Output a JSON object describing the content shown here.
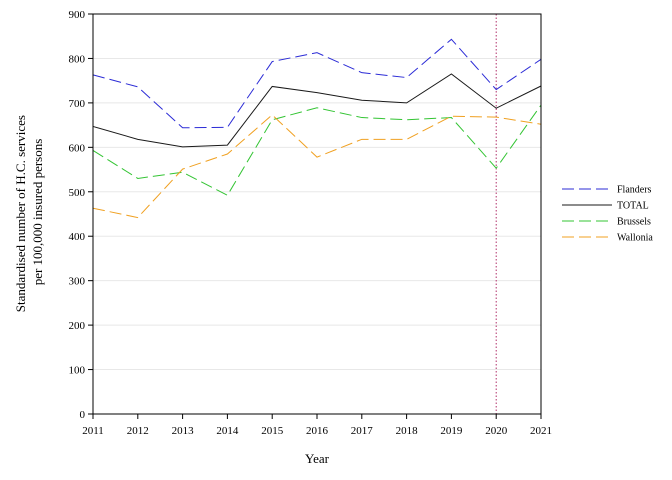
{
  "chart_data": {
    "type": "line",
    "xlabel": "Year",
    "ylabel_lines": [
      "Standardised number of H.C. services",
      "per 100,000 insured persons"
    ],
    "x": [
      "2011",
      "2012",
      "2013",
      "2014",
      "2015",
      "2016",
      "2017",
      "2018",
      "2019",
      "2020",
      "2021"
    ],
    "xlim": [
      2011,
      2021
    ],
    "ylim": [
      0,
      900
    ],
    "yticks": [
      "0",
      "100",
      "200",
      "300",
      "400",
      "500",
      "600",
      "700",
      "800",
      "900"
    ],
    "grid": "horizontal",
    "legend_placement": "right",
    "reference_line": {
      "x": 2020,
      "color": "#b0306a",
      "style": "dotted"
    },
    "series": [
      {
        "name": "Flanders",
        "color": "#2b2bd6",
        "dash": "dashed",
        "values": [
          763,
          736,
          644,
          645,
          793,
          813,
          768,
          757,
          843,
          730,
          798
        ]
      },
      {
        "name": "TOTAL",
        "color": "#1a1a1a",
        "dash": "solid",
        "values": [
          647,
          618,
          601,
          605,
          737,
          723,
          706,
          700,
          765,
          688,
          738
        ]
      },
      {
        "name": "Brussels",
        "color": "#33c433",
        "dash": "dashed",
        "values": [
          593,
          530,
          544,
          492,
          662,
          689,
          667,
          662,
          667,
          553,
          695
        ]
      },
      {
        "name": "Wallonia",
        "color": "#f0a020",
        "dash": "dashed",
        "values": [
          463,
          442,
          551,
          585,
          673,
          578,
          618,
          618,
          670,
          668,
          652
        ]
      }
    ]
  }
}
